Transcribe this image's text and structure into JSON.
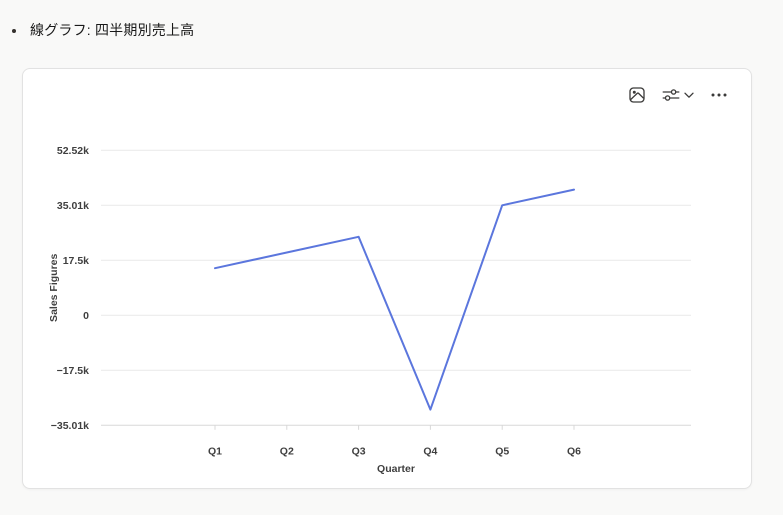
{
  "page": {
    "list_item": "線グラフ: 四半期別売上高"
  },
  "toolbar": {
    "icons": [
      "image-icon",
      "sliders-icon",
      "chevron-down-icon",
      "more-ellipsis-icon"
    ]
  },
  "chart_data": {
    "type": "line",
    "title": "",
    "categories": [
      "Q1",
      "Q2",
      "Q3",
      "Q4",
      "Q5",
      "Q6"
    ],
    "series": [
      {
        "name": "Sales Figures",
        "values": [
          15000,
          20000,
          25000,
          -30000,
          35000,
          40000
        ]
      }
    ],
    "xlabel": "Quarter",
    "ylabel": "Sales Figures",
    "y_ticks": [
      {
        "value": 52515,
        "label": "52.52k"
      },
      {
        "value": 35010,
        "label": "35.01k"
      },
      {
        "value": 17505,
        "label": "17.5k"
      },
      {
        "value": 0,
        "label": "0"
      },
      {
        "value": -17505,
        "label": "−17.5k"
      },
      {
        "value": -35010,
        "label": "−35.01k"
      }
    ],
    "ylim": [
      -35010,
      52515
    ],
    "grid": true,
    "legend": false,
    "line_color": "#5b76dd",
    "gridline_color": "#e9e9e9",
    "axisline_color": "#d8d8d8",
    "tick_text_color": "#3f3f3f"
  }
}
